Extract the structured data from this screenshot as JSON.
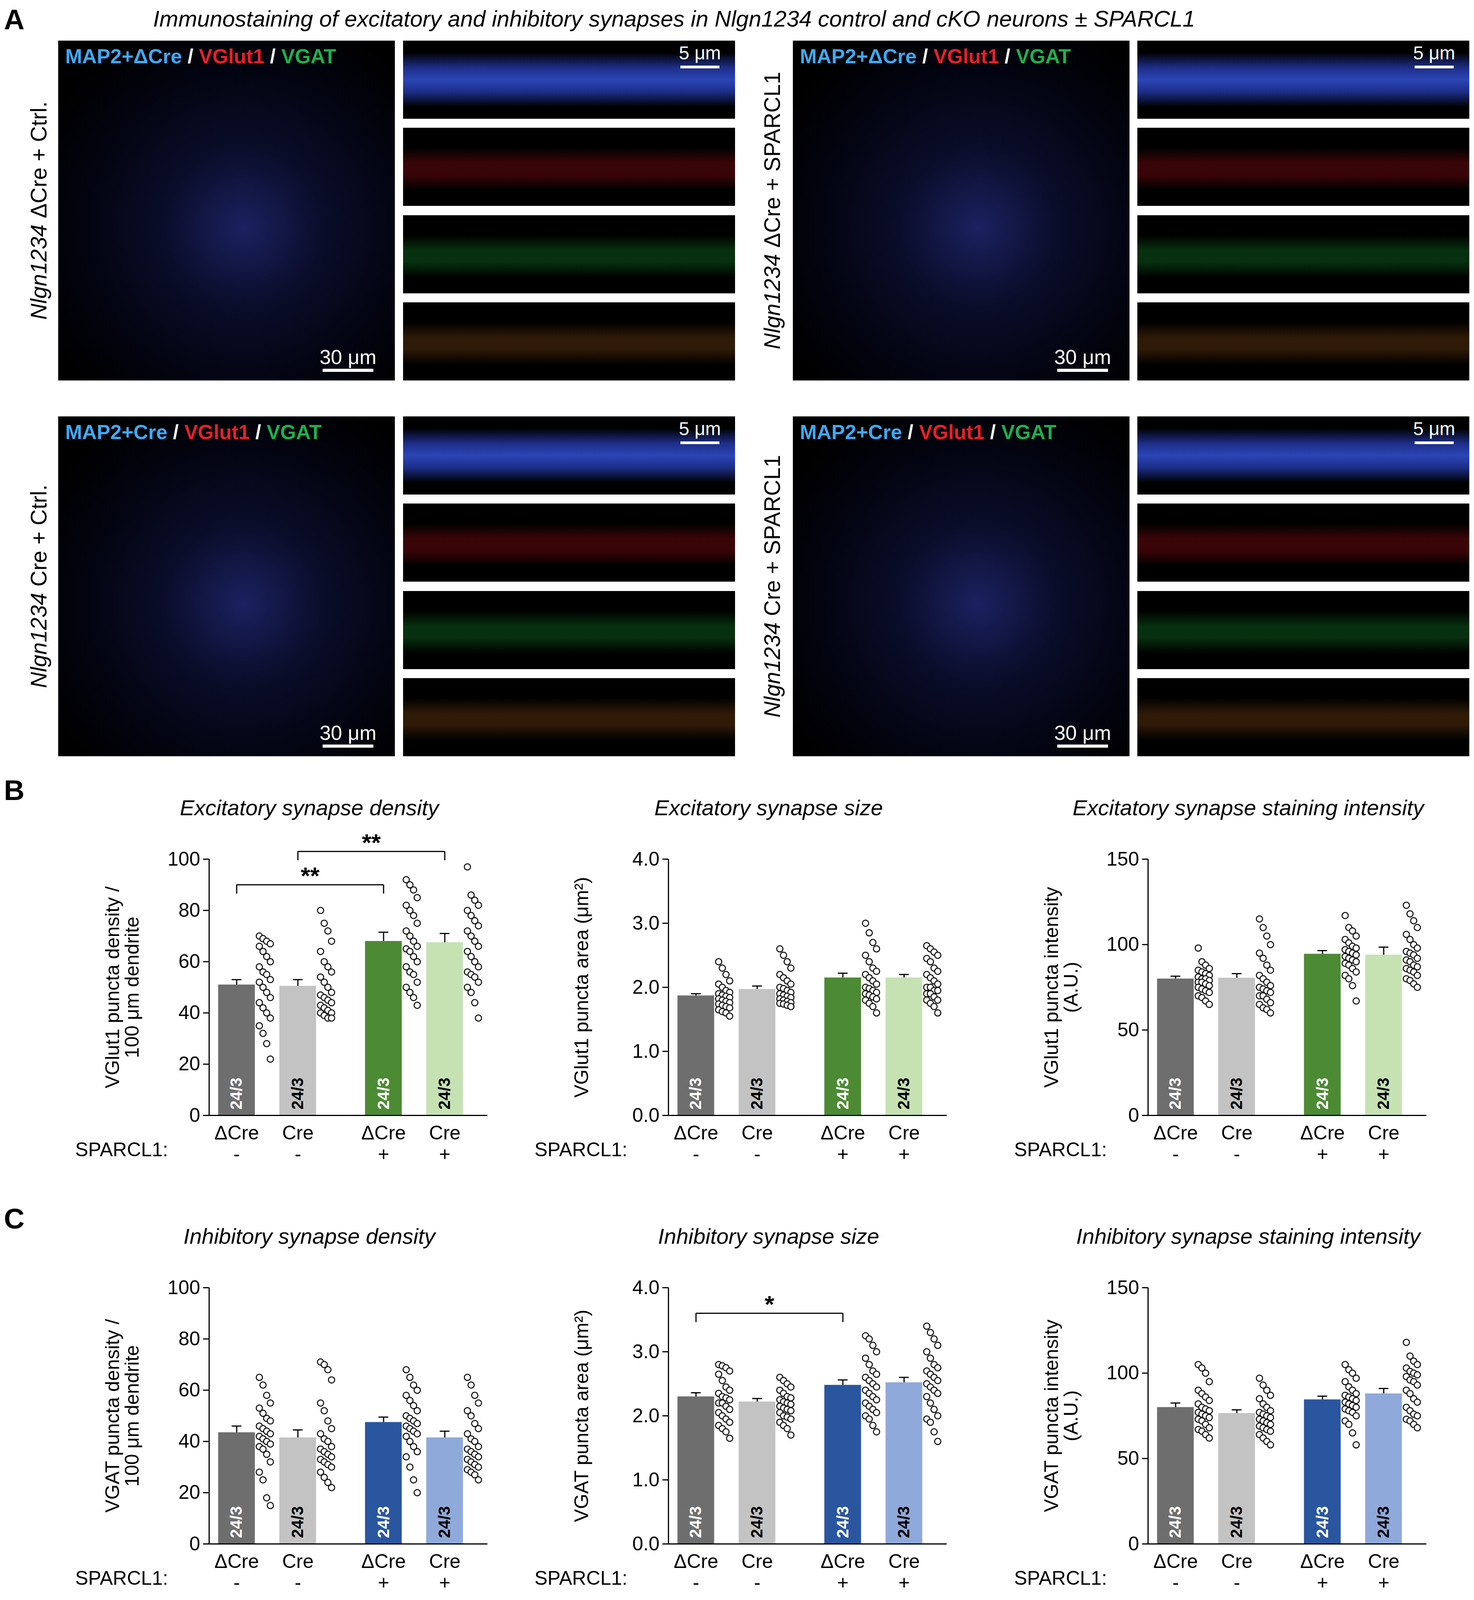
{
  "panel_a": {
    "letter": "A",
    "title": "Immunostaining of excitatory and inhibitory synapses in Nlgn1234 control and cKO neurons ± SPARCL1",
    "separator": " / ",
    "images": [
      {
        "gene": "Nlgn1234",
        "condition": "ΔCre + Ctrl.",
        "channels": [
          {
            "text": "MAP2+ΔCre",
            "color": "#3fa9f5"
          },
          {
            "text": "VGlut1",
            "color": "#e8202a"
          },
          {
            "text": "VGAT",
            "color": "#1fb04d"
          }
        ],
        "scale_bar": "30 μm",
        "inset_scale_bar": "5 μm"
      },
      {
        "gene": "Nlgn1234",
        "condition": "ΔCre + SPARCL1",
        "channels": [
          {
            "text": "MAP2+ΔCre",
            "color": "#3fa9f5"
          },
          {
            "text": "VGlut1",
            "color": "#e8202a"
          },
          {
            "text": "VGAT",
            "color": "#1fb04d"
          }
        ],
        "scale_bar": "30 μm",
        "inset_scale_bar": "5 μm"
      },
      {
        "gene": "Nlgn1234",
        "condition": "Cre + Ctrl.",
        "channels": [
          {
            "text": "MAP2+Cre",
            "color": "#3fa9f5"
          },
          {
            "text": "VGlut1",
            "color": "#e8202a"
          },
          {
            "text": "VGAT",
            "color": "#1fb04d"
          }
        ],
        "scale_bar": "30 μm",
        "inset_scale_bar": "5 μm"
      },
      {
        "gene": "Nlgn1234",
        "condition": "Cre + SPARCL1",
        "channels": [
          {
            "text": "MAP2+Cre",
            "color": "#3fa9f5"
          },
          {
            "text": "VGlut1",
            "color": "#e8202a"
          },
          {
            "text": "VGAT",
            "color": "#1fb04d"
          }
        ],
        "scale_bar": "30 μm",
        "inset_scale_bar": "5 μm"
      }
    ]
  },
  "chart_data": [
    {
      "type": "bar",
      "panel": "B",
      "title": "Excitatory synapse density",
      "y_label": [
        "VGlut1 puncta density /",
        "100 μm dendrite"
      ],
      "categories": [
        "ΔCre",
        "Cre",
        "ΔCre",
        "Cre"
      ],
      "group_label": "SPARCL1:",
      "groups": [
        "-",
        "-",
        "+",
        "+"
      ],
      "values": [
        51,
        50.5,
        68,
        67.5
      ],
      "errors": [
        2,
        2.5,
        3.5,
        3.5
      ],
      "colors": [
        "#6e6e6e",
        "#c3c3c3",
        "#4d8a34",
        "#c6e2b3"
      ],
      "n_labels": [
        "24/3",
        "24/3",
        "24/3",
        "24/3"
      ],
      "points": [
        [
          70,
          69,
          68,
          67,
          66,
          64,
          62,
          60,
          58,
          56,
          55,
          53,
          52,
          50,
          48,
          46,
          44,
          42,
          40,
          38,
          35,
          32,
          28,
          22
        ],
        [
          80,
          75,
          72,
          68,
          64,
          60,
          58,
          56,
          54,
          52,
          50,
          48,
          47,
          46,
          45,
          44,
          43,
          42,
          41,
          40,
          40,
          39,
          38,
          38
        ],
        [
          92,
          90,
          88,
          85,
          82,
          80,
          78,
          75,
          72,
          70,
          68,
          66,
          65,
          64,
          62,
          60,
          58,
          56,
          55,
          52,
          50,
          48,
          46,
          43
        ],
        [
          97,
          86,
          84,
          82,
          80,
          78,
          76,
          74,
          72,
          70,
          68,
          66,
          64,
          62,
          60,
          58,
          56,
          55,
          54,
          52,
          50,
          48,
          44,
          38
        ]
      ],
      "ylim": [
        0,
        100
      ],
      "yticks": [
        0,
        20,
        40,
        60,
        80,
        100
      ],
      "significance": [
        {
          "from": 0,
          "to": 2,
          "label": "**"
        },
        {
          "from": 1,
          "to": 3,
          "label": "**"
        }
      ]
    },
    {
      "type": "bar",
      "panel": "B",
      "title": "Excitatory synapse size",
      "y_label": [
        "VGlut1 puncta area (μm²)"
      ],
      "categories": [
        "ΔCre",
        "Cre",
        "ΔCre",
        "Cre"
      ],
      "group_label": "SPARCL1:",
      "groups": [
        "-",
        "-",
        "+",
        "+"
      ],
      "values": [
        1.87,
        1.97,
        2.15,
        2.15
      ],
      "errors": [
        0.03,
        0.05,
        0.07,
        0.05
      ],
      "colors": [
        "#6e6e6e",
        "#c3c3c3",
        "#4d8a34",
        "#c6e2b3"
      ],
      "n_labels": [
        "24/3",
        "24/3",
        "24/3",
        "24/3"
      ],
      "points": [
        [
          2.4,
          2.3,
          2.2,
          2.1,
          2.05,
          2.0,
          1.95,
          1.92,
          1.9,
          1.88,
          1.86,
          1.84,
          1.82,
          1.8,
          1.78,
          1.76,
          1.74,
          1.72,
          1.7,
          1.68,
          1.65,
          1.62,
          1.6,
          1.55
        ],
        [
          2.6,
          2.5,
          2.4,
          2.3,
          2.2,
          2.15,
          2.1,
          2.05,
          2.0,
          1.98,
          1.95,
          1.92,
          1.9,
          1.88,
          1.86,
          1.84,
          1.82,
          1.8,
          1.78,
          1.76,
          1.75,
          1.74,
          1.72,
          1.7
        ],
        [
          3.0,
          2.85,
          2.7,
          2.6,
          2.5,
          2.4,
          2.3,
          2.25,
          2.2,
          2.15,
          2.1,
          2.05,
          2.0,
          1.98,
          1.95,
          1.92,
          1.9,
          1.88,
          1.85,
          1.82,
          1.8,
          1.75,
          1.7,
          1.6
        ],
        [
          2.65,
          2.6,
          2.55,
          2.5,
          2.45,
          2.4,
          2.3,
          2.25,
          2.2,
          2.15,
          2.1,
          2.05,
          2.0,
          2.0,
          1.95,
          1.95,
          1.9,
          1.9,
          1.85,
          1.8,
          1.8,
          1.75,
          1.7,
          1.6
        ]
      ],
      "ylim": [
        0,
        4
      ],
      "yticks": [
        0,
        1,
        2,
        3,
        4
      ],
      "significance": []
    },
    {
      "type": "bar",
      "panel": "B",
      "title": "Excitatory synapse staining intensity",
      "y_label": [
        "VGlut1 puncta intensity",
        "(A.U.)"
      ],
      "categories": [
        "ΔCre",
        "Cre",
        "ΔCre",
        "Cre"
      ],
      "group_label": "SPARCL1:",
      "groups": [
        "-",
        "-",
        "+",
        "+"
      ],
      "values": [
        80,
        80.5,
        94.5,
        94
      ],
      "errors": [
        1.5,
        2.5,
        2,
        4.5
      ],
      "colors": [
        "#6e6e6e",
        "#c3c3c3",
        "#4d8a34",
        "#c6e2b3"
      ],
      "n_labels": [
        "24/3",
        "24/3",
        "24/3",
        "24/3"
      ],
      "points": [
        [
          98,
          90,
          88,
          86,
          85,
          84,
          83,
          82,
          81,
          80,
          80,
          79,
          78,
          78,
          77,
          76,
          75,
          74,
          73,
          72,
          70,
          69,
          67,
          65
        ],
        [
          115,
          110,
          105,
          100,
          95,
          92,
          88,
          85,
          82,
          80,
          78,
          76,
          75,
          74,
          73,
          72,
          70,
          70,
          68,
          66,
          65,
          63,
          62,
          60
        ],
        [
          117,
          110,
          108,
          105,
          103,
          101,
          99,
          98,
          97,
          96,
          95,
          94,
          93,
          92,
          91,
          90,
          89,
          88,
          86,
          84,
          82,
          80,
          76,
          67
        ],
        [
          123,
          118,
          114,
          110,
          106,
          103,
          100,
          98,
          96,
          95,
          94,
          92,
          91,
          90,
          88,
          87,
          86,
          85,
          84,
          82,
          80,
          79,
          77,
          75
        ]
      ],
      "ylim": [
        0,
        150
      ],
      "yticks": [
        0,
        50,
        100,
        150
      ],
      "significance": []
    },
    {
      "type": "bar",
      "panel": "C",
      "title": "Inhibitory synapse density",
      "y_label": [
        "VGAT puncta density /",
        "100 μm dendrite"
      ],
      "categories": [
        "ΔCre",
        "Cre",
        "ΔCre",
        "Cre"
      ],
      "group_label": "SPARCL1:",
      "groups": [
        "-",
        "-",
        "+",
        "+"
      ],
      "values": [
        43.5,
        41.5,
        47.5,
        41.5
      ],
      "errors": [
        2.5,
        3,
        2,
        2.5
      ],
      "colors": [
        "#6e6e6e",
        "#c3c3c3",
        "#2a56a0",
        "#8fa9da"
      ],
      "n_labels": [
        "24/3",
        "24/3",
        "24/3",
        "24/3"
      ],
      "points": [
        [
          65,
          62,
          58,
          55,
          53,
          51,
          49,
          48,
          46,
          45,
          44,
          43,
          42,
          41,
          40,
          39,
          38,
          37,
          35,
          32,
          28,
          25,
          18,
          15
        ],
        [
          71,
          70,
          68,
          64,
          55,
          52,
          48,
          45,
          43,
          41,
          40,
          38,
          37,
          36,
          35,
          34,
          33,
          32,
          31,
          30,
          28,
          26,
          24,
          22
        ],
        [
          68,
          65,
          62,
          60,
          58,
          56,
          54,
          52,
          50,
          49,
          48,
          47,
          46,
          45,
          44,
          43,
          42,
          40,
          38,
          36,
          34,
          30,
          25,
          20
        ],
        [
          65,
          62,
          58,
          55,
          52,
          50,
          47,
          45,
          43,
          41,
          40,
          38,
          37,
          36,
          35,
          34,
          33,
          32,
          31,
          30,
          29,
          28,
          27,
          25
        ]
      ],
      "ylim": [
        0,
        100
      ],
      "yticks": [
        0,
        20,
        40,
        60,
        80,
        100
      ],
      "significance": []
    },
    {
      "type": "bar",
      "panel": "C",
      "title": "Inhibitory synapse size",
      "y_label": [
        "VGAT puncta area (μm²)"
      ],
      "categories": [
        "ΔCre",
        "Cre",
        "ΔCre",
        "Cre"
      ],
      "group_label": "SPARCL1:",
      "groups": [
        "-",
        "-",
        "+",
        "+"
      ],
      "values": [
        2.3,
        2.22,
        2.48,
        2.52
      ],
      "errors": [
        0.06,
        0.05,
        0.08,
        0.08
      ],
      "colors": [
        "#6e6e6e",
        "#c3c3c3",
        "#2a56a0",
        "#8fa9da"
      ],
      "n_labels": [
        "24/3",
        "24/3",
        "24/3",
        "24/3"
      ],
      "points": [
        [
          2.8,
          2.78,
          2.75,
          2.7,
          2.65,
          2.55,
          2.45,
          2.4,
          2.35,
          2.3,
          2.28,
          2.25,
          2.2,
          2.2,
          2.15,
          2.1,
          2.05,
          2.0,
          1.95,
          1.9,
          1.85,
          1.8,
          1.75,
          1.65
        ],
        [
          2.6,
          2.55,
          2.5,
          2.45,
          2.4,
          2.35,
          2.3,
          2.28,
          2.25,
          2.22,
          2.2,
          2.18,
          2.15,
          2.12,
          2.1,
          2.08,
          2.05,
          2.0,
          1.98,
          1.95,
          1.9,
          1.85,
          1.8,
          1.7
        ],
        [
          3.25,
          3.2,
          3.1,
          3.0,
          2.9,
          2.8,
          2.7,
          2.65,
          2.6,
          2.55,
          2.5,
          2.45,
          2.4,
          2.35,
          2.3,
          2.25,
          2.2,
          2.15,
          2.1,
          2.05,
          2.0,
          1.95,
          1.85,
          1.75
        ],
        [
          3.4,
          3.3,
          3.2,
          3.1,
          3.0,
          2.9,
          2.8,
          2.75,
          2.7,
          2.65,
          2.6,
          2.55,
          2.5,
          2.45,
          2.4,
          2.35,
          2.3,
          2.2,
          2.1,
          2.0,
          1.95,
          1.9,
          1.75,
          1.6
        ]
      ],
      "ylim": [
        0,
        4
      ],
      "yticks": [
        0,
        1,
        2,
        3,
        4
      ],
      "significance": [
        {
          "from": 0,
          "to": 2,
          "label": "*"
        }
      ]
    },
    {
      "type": "bar",
      "panel": "C",
      "title": "Inhibitory synapse staining intensity",
      "y_label": [
        "VGAT puncta intensity",
        "(A.U.)"
      ],
      "categories": [
        "ΔCre",
        "Cre",
        "ΔCre",
        "Cre"
      ],
      "group_label": "SPARCL1:",
      "groups": [
        "-",
        "-",
        "+",
        "+"
      ],
      "values": [
        80,
        76.5,
        84.5,
        88
      ],
      "errors": [
        2.5,
        2,
        2,
        3
      ],
      "colors": [
        "#6e6e6e",
        "#c3c3c3",
        "#2a56a0",
        "#8fa9da"
      ],
      "n_labels": [
        "24/3",
        "24/3",
        "24/3",
        "24/3"
      ],
      "points": [
        [
          105,
          103,
          100,
          95,
          90,
          88,
          86,
          84,
          82,
          80,
          79,
          78,
          77,
          76,
          75,
          74,
          73,
          72,
          70,
          68,
          67,
          66,
          64,
          62
        ],
        [
          97,
          93,
          90,
          87,
          85,
          82,
          80,
          78,
          77,
          76,
          75,
          74,
          73,
          72,
          71,
          70,
          69,
          68,
          67,
          66,
          64,
          62,
          60,
          58
        ],
        [
          105,
          102,
          100,
          97,
          95,
          92,
          90,
          88,
          87,
          86,
          85,
          84,
          83,
          82,
          81,
          80,
          79,
          78,
          77,
          75,
          72,
          70,
          65,
          58
        ],
        [
          118,
          110,
          107,
          105,
          103,
          101,
          100,
          99,
          98,
          96,
          95,
          93,
          90,
          88,
          85,
          83,
          80,
          78,
          76,
          75,
          73,
          72,
          70,
          68
        ]
      ],
      "ylim": [
        0,
        150
      ],
      "yticks": [
        0,
        50,
        100,
        150
      ],
      "significance": []
    }
  ]
}
